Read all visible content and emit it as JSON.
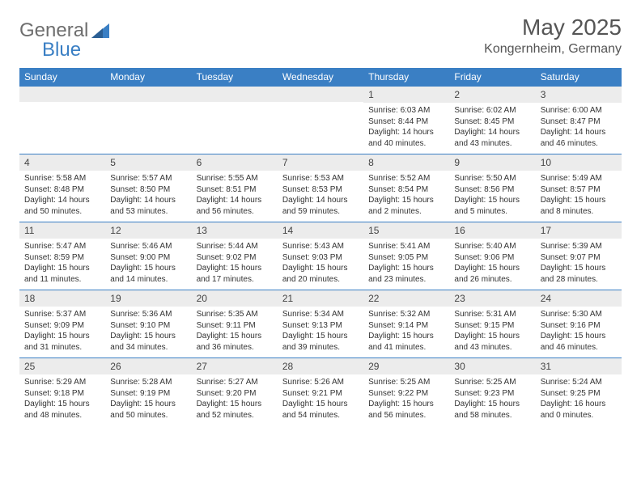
{
  "logo": {
    "text1": "General",
    "text2": "Blue"
  },
  "title": "May 2025",
  "location": "Kongernheim, Germany",
  "colors": {
    "header_bg": "#3a7fc4",
    "header_fg": "#ffffff",
    "daynum_bg": "#ececec",
    "border": "#3a7fc4",
    "logo_gray": "#6e6e6e",
    "logo_blue": "#3a7fc4"
  },
  "dayHeaders": [
    "Sunday",
    "Monday",
    "Tuesday",
    "Wednesday",
    "Thursday",
    "Friday",
    "Saturday"
  ],
  "weeks": [
    [
      null,
      null,
      null,
      null,
      {
        "n": "1",
        "sr": "Sunrise: 6:03 AM",
        "ss": "Sunset: 8:44 PM",
        "d1": "Daylight: 14 hours",
        "d2": "and 40 minutes."
      },
      {
        "n": "2",
        "sr": "Sunrise: 6:02 AM",
        "ss": "Sunset: 8:45 PM",
        "d1": "Daylight: 14 hours",
        "d2": "and 43 minutes."
      },
      {
        "n": "3",
        "sr": "Sunrise: 6:00 AM",
        "ss": "Sunset: 8:47 PM",
        "d1": "Daylight: 14 hours",
        "d2": "and 46 minutes."
      }
    ],
    [
      {
        "n": "4",
        "sr": "Sunrise: 5:58 AM",
        "ss": "Sunset: 8:48 PM",
        "d1": "Daylight: 14 hours",
        "d2": "and 50 minutes."
      },
      {
        "n": "5",
        "sr": "Sunrise: 5:57 AM",
        "ss": "Sunset: 8:50 PM",
        "d1": "Daylight: 14 hours",
        "d2": "and 53 minutes."
      },
      {
        "n": "6",
        "sr": "Sunrise: 5:55 AM",
        "ss": "Sunset: 8:51 PM",
        "d1": "Daylight: 14 hours",
        "d2": "and 56 minutes."
      },
      {
        "n": "7",
        "sr": "Sunrise: 5:53 AM",
        "ss": "Sunset: 8:53 PM",
        "d1": "Daylight: 14 hours",
        "d2": "and 59 minutes."
      },
      {
        "n": "8",
        "sr": "Sunrise: 5:52 AM",
        "ss": "Sunset: 8:54 PM",
        "d1": "Daylight: 15 hours",
        "d2": "and 2 minutes."
      },
      {
        "n": "9",
        "sr": "Sunrise: 5:50 AM",
        "ss": "Sunset: 8:56 PM",
        "d1": "Daylight: 15 hours",
        "d2": "and 5 minutes."
      },
      {
        "n": "10",
        "sr": "Sunrise: 5:49 AM",
        "ss": "Sunset: 8:57 PM",
        "d1": "Daylight: 15 hours",
        "d2": "and 8 minutes."
      }
    ],
    [
      {
        "n": "11",
        "sr": "Sunrise: 5:47 AM",
        "ss": "Sunset: 8:59 PM",
        "d1": "Daylight: 15 hours",
        "d2": "and 11 minutes."
      },
      {
        "n": "12",
        "sr": "Sunrise: 5:46 AM",
        "ss": "Sunset: 9:00 PM",
        "d1": "Daylight: 15 hours",
        "d2": "and 14 minutes."
      },
      {
        "n": "13",
        "sr": "Sunrise: 5:44 AM",
        "ss": "Sunset: 9:02 PM",
        "d1": "Daylight: 15 hours",
        "d2": "and 17 minutes."
      },
      {
        "n": "14",
        "sr": "Sunrise: 5:43 AM",
        "ss": "Sunset: 9:03 PM",
        "d1": "Daylight: 15 hours",
        "d2": "and 20 minutes."
      },
      {
        "n": "15",
        "sr": "Sunrise: 5:41 AM",
        "ss": "Sunset: 9:05 PM",
        "d1": "Daylight: 15 hours",
        "d2": "and 23 minutes."
      },
      {
        "n": "16",
        "sr": "Sunrise: 5:40 AM",
        "ss": "Sunset: 9:06 PM",
        "d1": "Daylight: 15 hours",
        "d2": "and 26 minutes."
      },
      {
        "n": "17",
        "sr": "Sunrise: 5:39 AM",
        "ss": "Sunset: 9:07 PM",
        "d1": "Daylight: 15 hours",
        "d2": "and 28 minutes."
      }
    ],
    [
      {
        "n": "18",
        "sr": "Sunrise: 5:37 AM",
        "ss": "Sunset: 9:09 PM",
        "d1": "Daylight: 15 hours",
        "d2": "and 31 minutes."
      },
      {
        "n": "19",
        "sr": "Sunrise: 5:36 AM",
        "ss": "Sunset: 9:10 PM",
        "d1": "Daylight: 15 hours",
        "d2": "and 34 minutes."
      },
      {
        "n": "20",
        "sr": "Sunrise: 5:35 AM",
        "ss": "Sunset: 9:11 PM",
        "d1": "Daylight: 15 hours",
        "d2": "and 36 minutes."
      },
      {
        "n": "21",
        "sr": "Sunrise: 5:34 AM",
        "ss": "Sunset: 9:13 PM",
        "d1": "Daylight: 15 hours",
        "d2": "and 39 minutes."
      },
      {
        "n": "22",
        "sr": "Sunrise: 5:32 AM",
        "ss": "Sunset: 9:14 PM",
        "d1": "Daylight: 15 hours",
        "d2": "and 41 minutes."
      },
      {
        "n": "23",
        "sr": "Sunrise: 5:31 AM",
        "ss": "Sunset: 9:15 PM",
        "d1": "Daylight: 15 hours",
        "d2": "and 43 minutes."
      },
      {
        "n": "24",
        "sr": "Sunrise: 5:30 AM",
        "ss": "Sunset: 9:16 PM",
        "d1": "Daylight: 15 hours",
        "d2": "and 46 minutes."
      }
    ],
    [
      {
        "n": "25",
        "sr": "Sunrise: 5:29 AM",
        "ss": "Sunset: 9:18 PM",
        "d1": "Daylight: 15 hours",
        "d2": "and 48 minutes."
      },
      {
        "n": "26",
        "sr": "Sunrise: 5:28 AM",
        "ss": "Sunset: 9:19 PM",
        "d1": "Daylight: 15 hours",
        "d2": "and 50 minutes."
      },
      {
        "n": "27",
        "sr": "Sunrise: 5:27 AM",
        "ss": "Sunset: 9:20 PM",
        "d1": "Daylight: 15 hours",
        "d2": "and 52 minutes."
      },
      {
        "n": "28",
        "sr": "Sunrise: 5:26 AM",
        "ss": "Sunset: 9:21 PM",
        "d1": "Daylight: 15 hours",
        "d2": "and 54 minutes."
      },
      {
        "n": "29",
        "sr": "Sunrise: 5:25 AM",
        "ss": "Sunset: 9:22 PM",
        "d1": "Daylight: 15 hours",
        "d2": "and 56 minutes."
      },
      {
        "n": "30",
        "sr": "Sunrise: 5:25 AM",
        "ss": "Sunset: 9:23 PM",
        "d1": "Daylight: 15 hours",
        "d2": "and 58 minutes."
      },
      {
        "n": "31",
        "sr": "Sunrise: 5:24 AM",
        "ss": "Sunset: 9:25 PM",
        "d1": "Daylight: 16 hours",
        "d2": "and 0 minutes."
      }
    ]
  ]
}
